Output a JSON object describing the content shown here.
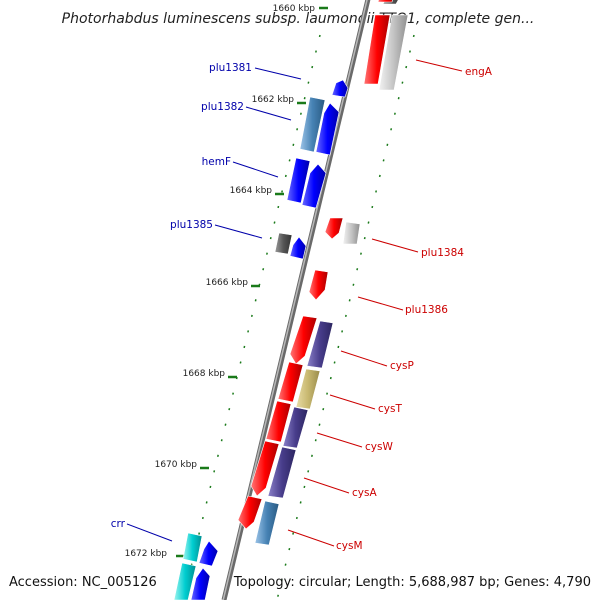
{
  "title": "Photorhabdus luminescens subsp. laumondii TTO1, complete gen...",
  "accession": "Accession: NC_005126",
  "summary": "Topology: circular; Length: 5,688,987 bp; Genes: 4,790",
  "colors": {
    "forward_label": "#0000aa",
    "reverse_label": "#cc0000",
    "backbone": "#888888",
    "tick": "#1a7a1a"
  },
  "kbp_ticks": [
    "1660 kbp",
    "1662 kbp",
    "1664 kbp",
    "1666 kbp",
    "1668 kbp",
    "1670 kbp",
    "1672 kbp"
  ],
  "genes_forward": [
    "plu1381",
    "plu1382",
    "hemF",
    "plu1385",
    "crr"
  ],
  "genes_reverse": [
    "engA",
    "plu1384",
    "plu1386",
    "cysP",
    "cysT",
    "cysW",
    "cysA",
    "cysM"
  ]
}
